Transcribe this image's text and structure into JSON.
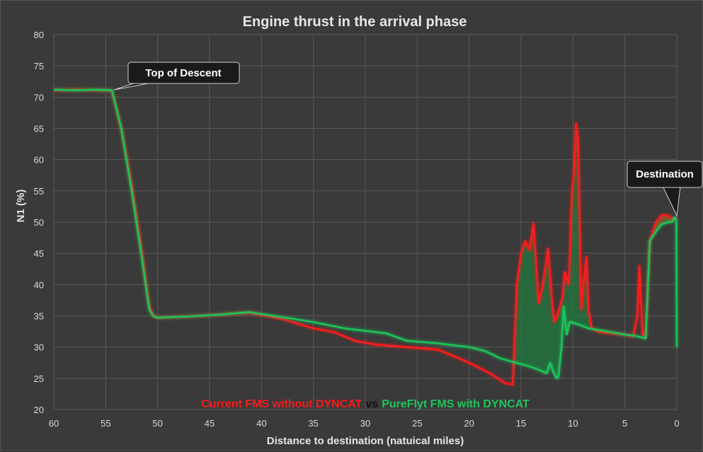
{
  "chart_data": {
    "type": "line",
    "title": "Engine thrust in the arrival phase",
    "xlabel": "Distance to destination (natuical miles)",
    "ylabel": "N1 (%)",
    "xlim": [
      60,
      0
    ],
    "ylim": [
      20,
      80
    ],
    "x_ticks": [
      60,
      55,
      50,
      45,
      40,
      35,
      30,
      25,
      20,
      15,
      10,
      5,
      0
    ],
    "y_ticks": [
      20,
      25,
      30,
      35,
      40,
      45,
      50,
      55,
      60,
      65,
      70,
      75,
      80
    ],
    "grid": true,
    "legend_position": "bottom-center",
    "legend": {
      "series1": "Current FMS without DYNCAT",
      "vs": "vs",
      "series2": "PureFlyt FMS with DYNCAT"
    },
    "annotations": {
      "top_of_descent": "Top of Descent",
      "destination": "Destination"
    },
    "colors": {
      "series1": "#ff1a1a",
      "series2": "#1ec45a",
      "fill": "#1f7a3f",
      "background": "#3a3a3a",
      "grid": "#5a5a5a"
    },
    "series": [
      {
        "name": "Current FMS without DYNCAT",
        "points": [
          [
            60,
            71.1
          ],
          [
            58,
            71.2
          ],
          [
            56,
            71.1
          ],
          [
            54.4,
            71.1
          ],
          [
            53.5,
            65
          ],
          [
            52.5,
            56
          ],
          [
            51.5,
            45
          ],
          [
            50.8,
            36.5
          ],
          [
            50.4,
            35.0
          ],
          [
            50,
            34.7
          ],
          [
            47,
            34.9
          ],
          [
            44,
            35.2
          ],
          [
            41.2,
            35.5
          ],
          [
            38,
            34.5
          ],
          [
            35,
            33.0
          ],
          [
            33,
            32.4
          ],
          [
            31,
            31.0
          ],
          [
            29,
            30.4
          ],
          [
            26,
            30.0
          ],
          [
            23,
            29.6
          ],
          [
            20,
            27.5
          ],
          [
            18,
            25.8
          ],
          [
            16.5,
            24.2
          ],
          [
            15.8,
            24.0
          ],
          [
            15.4,
            40.0
          ],
          [
            15.0,
            45.0
          ],
          [
            14.6,
            47.0
          ],
          [
            14.2,
            45.5
          ],
          [
            13.8,
            49.8
          ],
          [
            13.3,
            37.0
          ],
          [
            12.9,
            40.0
          ],
          [
            12.4,
            45.8
          ],
          [
            12.0,
            37.0
          ],
          [
            11.8,
            34.0
          ],
          [
            11.5,
            35.0
          ],
          [
            11.0,
            38.0
          ],
          [
            10.8,
            42.0
          ],
          [
            10.4,
            40.0
          ],
          [
            10.1,
            55.0
          ],
          [
            9.9,
            58.0
          ],
          [
            9.7,
            65.8
          ],
          [
            9.5,
            63.0
          ],
          [
            9.2,
            36.0
          ],
          [
            9.0,
            40.0
          ],
          [
            8.7,
            44.5
          ],
          [
            8.5,
            36.0
          ],
          [
            8.2,
            33.0
          ],
          [
            7.5,
            32.4
          ],
          [
            5.0,
            32.0
          ],
          [
            4.2,
            31.7
          ],
          [
            3.8,
            35.0
          ],
          [
            3.6,
            43.0
          ],
          [
            3.3,
            32.0
          ],
          [
            3.0,
            31.8
          ],
          [
            2.6,
            47.0
          ],
          [
            2.0,
            50.0
          ],
          [
            1.4,
            51.2
          ],
          [
            0.8,
            51.0
          ],
          [
            0.5,
            50.6
          ],
          [
            0.0,
            50.5
          ]
        ]
      },
      {
        "name": "PureFlyt FMS with DYNCAT",
        "points": [
          [
            60,
            71.2
          ],
          [
            58,
            71.1
          ],
          [
            56,
            71.2
          ],
          [
            54.4,
            71.1
          ],
          [
            53.5,
            65
          ],
          [
            52.5,
            55
          ],
          [
            51.5,
            44
          ],
          [
            50.8,
            36.0
          ],
          [
            50.4,
            34.9
          ],
          [
            50,
            34.7
          ],
          [
            47,
            34.9
          ],
          [
            44,
            35.2
          ],
          [
            41.2,
            35.6
          ],
          [
            38,
            34.8
          ],
          [
            35,
            34.0
          ],
          [
            32,
            33.0
          ],
          [
            28,
            32.2
          ],
          [
            26,
            31.0
          ],
          [
            23,
            30.6
          ],
          [
            20,
            30.0
          ],
          [
            18.5,
            29.4
          ],
          [
            17,
            28.2
          ],
          [
            15.5,
            27.5
          ],
          [
            14,
            26.8
          ],
          [
            12.5,
            25.8
          ],
          [
            12.2,
            27.5
          ],
          [
            11.9,
            26.0
          ],
          [
            11.6,
            25.0
          ],
          [
            11.4,
            25.2
          ],
          [
            11.1,
            30.0
          ],
          [
            10.9,
            36.5
          ],
          [
            10.6,
            32.0
          ],
          [
            10.3,
            34.0
          ],
          [
            9.8,
            33.8
          ],
          [
            8.5,
            33.0
          ],
          [
            7.0,
            32.6
          ],
          [
            5.0,
            32.0
          ],
          [
            4.0,
            31.8
          ],
          [
            3.0,
            31.4
          ],
          [
            2.6,
            47.0
          ],
          [
            2.0,
            48.5
          ],
          [
            1.5,
            49.6
          ],
          [
            0.8,
            50.0
          ],
          [
            0.5,
            50.0
          ],
          [
            0.2,
            50.8
          ],
          [
            0.05,
            50.3
          ],
          [
            0.0,
            30.0
          ]
        ]
      }
    ]
  }
}
